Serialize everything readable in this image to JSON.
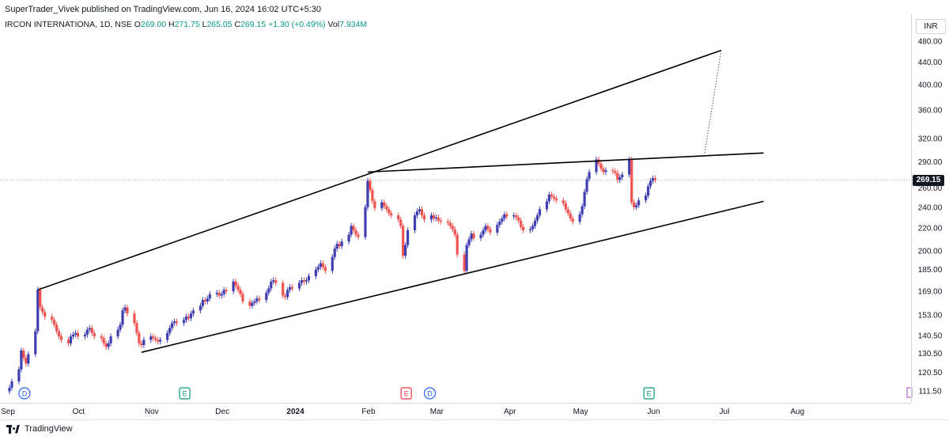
{
  "publisher": "SuperTrader_Vivek published on TradingView.com, Jun 16, 2024 16:02 UTC+5:30",
  "legend": {
    "symbol": "IRCON INTERNATIONA, 1D, NSE",
    "open_label": "O",
    "open": "269.00",
    "high_label": "H",
    "high": "271.75",
    "low_label": "L",
    "low": "265.05",
    "close_label": "C",
    "close": "269.15",
    "change": "+1.30 (+0.49%)",
    "vol_label": "Vol",
    "vol": "7.934M"
  },
  "currency": "INR",
  "last_price": "269.15",
  "brand": "TradingView",
  "colors": {
    "up": "#3f3fb2",
    "down": "#ef5350",
    "line": "#000000",
    "value": "#089981"
  },
  "chart_data": {
    "type": "candlestick",
    "y_scale": "log",
    "y_ticks": [
      111.5,
      120.5,
      130.5,
      140.5,
      153.0,
      169.0,
      185.0,
      200.0,
      220.0,
      240.0,
      260.0,
      290.0,
      320.0,
      360.0,
      400.0,
      440.0,
      480.0
    ],
    "y_tick_labels": [
      "111.50",
      "120.50",
      "130.50",
      "140.50",
      "153.00",
      "169.00",
      "185.00",
      "200.00",
      "220.00",
      "240.00",
      "260.00",
      "290.00",
      "320.00",
      "360.00",
      "400.00",
      "440.00",
      "480.00"
    ],
    "x_labels": [
      "Sep",
      "Oct",
      "Nov",
      "Dec",
      "2024",
      "Feb",
      "Mar",
      "Apr",
      "May",
      "Jun",
      "Jul",
      "Aug"
    ],
    "x_label_days": [
      0,
      30,
      61,
      91,
      122,
      153,
      182,
      213,
      243,
      274,
      304,
      335
    ],
    "events": [
      {
        "label": "D",
        "day": 3,
        "kind": "dividend"
      },
      {
        "label": "E",
        "day": 71,
        "kind": "earnings-up"
      },
      {
        "label": "E",
        "day": 165,
        "kind": "earnings-down"
      },
      {
        "label": "D",
        "day": 175,
        "kind": "dividend"
      },
      {
        "label": "E",
        "day": 268,
        "kind": "earnings-up"
      }
    ],
    "closes": [
      [
        0,
        113
      ],
      [
        1,
        116
      ],
      [
        4,
        122
      ],
      [
        5,
        132
      ],
      [
        6,
        128
      ],
      [
        7,
        125
      ],
      [
        8,
        130
      ],
      [
        11,
        143
      ],
      [
        12,
        170
      ],
      [
        13,
        158
      ],
      [
        14,
        155
      ],
      [
        15,
        152
      ],
      [
        18,
        150
      ],
      [
        19,
        147
      ],
      [
        20,
        143
      ],
      [
        21,
        140
      ],
      [
        22,
        138
      ],
      [
        25,
        136
      ],
      [
        26,
        140
      ],
      [
        27,
        141
      ],
      [
        28,
        142
      ],
      [
        29,
        140
      ],
      [
        32,
        141
      ],
      [
        33,
        144
      ],
      [
        34,
        145
      ],
      [
        35,
        142
      ],
      [
        36,
        140
      ],
      [
        39,
        139
      ],
      [
        40,
        136
      ],
      [
        41,
        134
      ],
      [
        42,
        136
      ],
      [
        43,
        140
      ],
      [
        46,
        144
      ],
      [
        47,
        147
      ],
      [
        48,
        156
      ],
      [
        49,
        158
      ],
      [
        50,
        154
      ],
      [
        53,
        148
      ],
      [
        54,
        142
      ],
      [
        55,
        136
      ],
      [
        56,
        135
      ],
      [
        57,
        138
      ],
      [
        60,
        140
      ],
      [
        61,
        139
      ],
      [
        62,
        138
      ],
      [
        63,
        137
      ],
      [
        64,
        138
      ],
      [
        67,
        142
      ],
      [
        68,
        145
      ],
      [
        69,
        148
      ],
      [
        70,
        149
      ],
      [
        71,
        148
      ],
      [
        74,
        150
      ],
      [
        75,
        152
      ],
      [
        76,
        151
      ],
      [
        77,
        154
      ],
      [
        78,
        156
      ],
      [
        81,
        159
      ],
      [
        82,
        163
      ],
      [
        83,
        162
      ],
      [
        84,
        164
      ],
      [
        85,
        167
      ],
      [
        88,
        168
      ],
      [
        89,
        166
      ],
      [
        90,
        167
      ],
      [
        91,
        170
      ],
      [
        92,
        169
      ],
      [
        95,
        176
      ],
      [
        96,
        173
      ],
      [
        97,
        170
      ],
      [
        98,
        167
      ],
      [
        99,
        162
      ],
      [
        102,
        159
      ],
      [
        103,
        161
      ],
      [
        104,
        162
      ],
      [
        105,
        164
      ],
      [
        106,
        163
      ],
      [
        109,
        168
      ],
      [
        110,
        171
      ],
      [
        111,
        176
      ],
      [
        112,
        177
      ],
      [
        113,
        175
      ],
      [
        116,
        166
      ],
      [
        117,
        165
      ],
      [
        118,
        170
      ],
      [
        119,
        172
      ],
      [
        120,
        171
      ],
      [
        123,
        175
      ],
      [
        124,
        177
      ],
      [
        125,
        176
      ],
      [
        126,
        177
      ],
      [
        127,
        180
      ],
      [
        130,
        185
      ],
      [
        131,
        187
      ],
      [
        132,
        190
      ],
      [
        133,
        187
      ],
      [
        134,
        184
      ],
      [
        137,
        195
      ],
      [
        138,
        202
      ],
      [
        139,
        206
      ],
      [
        140,
        204
      ],
      [
        141,
        208
      ],
      [
        144,
        214
      ],
      [
        145,
        222
      ],
      [
        146,
        218
      ],
      [
        147,
        214
      ],
      [
        148,
        212
      ],
      [
        151,
        240
      ],
      [
        152,
        268
      ],
      [
        153,
        258
      ],
      [
        154,
        246
      ],
      [
        155,
        239
      ],
      [
        158,
        245
      ],
      [
        159,
        241
      ],
      [
        160,
        238
      ],
      [
        161,
        234
      ],
      [
        162,
        232
      ],
      [
        165,
        228
      ],
      [
        166,
        222
      ],
      [
        167,
        196
      ],
      [
        168,
        205
      ],
      [
        169,
        218
      ],
      [
        172,
        232
      ],
      [
        173,
        236
      ],
      [
        174,
        238
      ],
      [
        175,
        232
      ],
      [
        176,
        228
      ],
      [
        179,
        232
      ],
      [
        180,
        229
      ],
      [
        181,
        230
      ],
      [
        182,
        227
      ],
      [
        183,
        226
      ],
      [
        186,
        225
      ],
      [
        187,
        222
      ],
      [
        188,
        219
      ],
      [
        189,
        214
      ],
      [
        190,
        197
      ],
      [
        193,
        184
      ],
      [
        194,
        205
      ],
      [
        195,
        210
      ],
      [
        196,
        215
      ],
      [
        197,
        211
      ],
      [
        200,
        214
      ],
      [
        201,
        218
      ],
      [
        202,
        222
      ],
      [
        203,
        219
      ],
      [
        204,
        216
      ],
      [
        207,
        223
      ],
      [
        208,
        226
      ],
      [
        209,
        229
      ],
      [
        210,
        233
      ],
      [
        211,
        231
      ],
      [
        214,
        232
      ],
      [
        215,
        230
      ],
      [
        216,
        227
      ],
      [
        217,
        221
      ],
      [
        218,
        218
      ],
      [
        221,
        219
      ],
      [
        222,
        222
      ],
      [
        223,
        227
      ],
      [
        224,
        232
      ],
      [
        225,
        238
      ],
      [
        228,
        246
      ],
      [
        229,
        253
      ],
      [
        230,
        251
      ],
      [
        231,
        249
      ],
      [
        232,
        247
      ],
      [
        235,
        244
      ],
      [
        236,
        238
      ],
      [
        237,
        234
      ],
      [
        238,
        229
      ],
      [
        239,
        226
      ],
      [
        242,
        233
      ],
      [
        243,
        241
      ],
      [
        244,
        256
      ],
      [
        245,
        270
      ],
      [
        246,
        278
      ],
      [
        249,
        293
      ],
      [
        250,
        288
      ],
      [
        251,
        282
      ],
      [
        252,
        278
      ],
      [
        253,
        280
      ],
      [
        256,
        279
      ],
      [
        257,
        277
      ],
      [
        258,
        269
      ],
      [
        259,
        272
      ],
      [
        260,
        275
      ],
      [
        263,
        293
      ],
      [
        264,
        245
      ],
      [
        265,
        240
      ],
      [
        266,
        242
      ],
      [
        267,
        247
      ],
      [
        270,
        252
      ],
      [
        271,
        262
      ],
      [
        272,
        268
      ],
      [
        273,
        271
      ],
      [
        274,
        269
      ]
    ],
    "trendlines": [
      {
        "name": "upper-channel-line",
        "from": [
          12,
          170
        ],
        "to": [
          302,
          462
        ]
      },
      {
        "name": "lower-channel-line",
        "from": [
          56,
          131
        ],
        "to": [
          320,
          246
        ]
      },
      {
        "name": "neckline",
        "from": [
          152,
          278
        ],
        "to": [
          320,
          301
        ]
      }
    ],
    "projection": {
      "from": [
        295,
        301
      ],
      "to": [
        302,
        462
      ]
    }
  }
}
